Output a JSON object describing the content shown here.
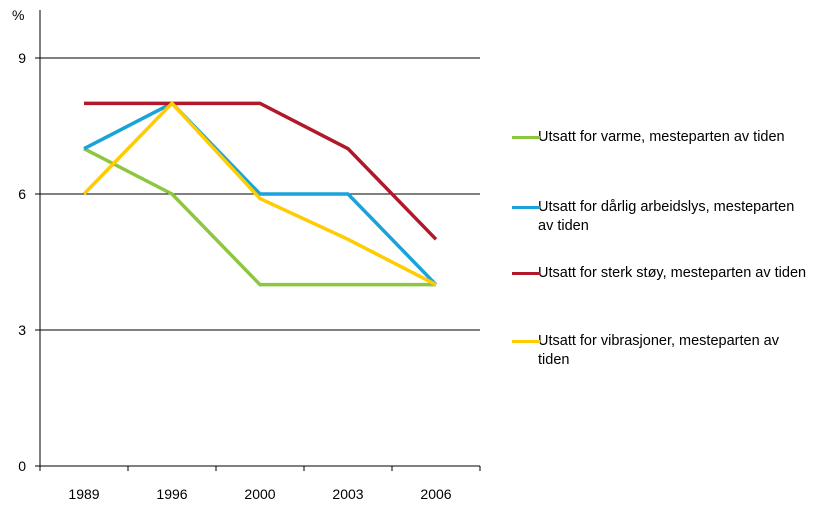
{
  "chart_data": {
    "type": "line",
    "ylabel": "%",
    "ylim": [
      0,
      9
    ],
    "yticks": [
      0,
      3,
      6,
      9
    ],
    "categories": [
      "1989",
      "1996",
      "2000",
      "2003",
      "2006"
    ],
    "grid": true,
    "legend_position": "right",
    "series": [
      {
        "name": "Utsatt for varme, mesteparten av tiden",
        "color": "#8dc63f",
        "values": [
          7,
          6,
          4,
          4,
          4
        ]
      },
      {
        "name": "Utsatt for dårlig arbeidslys, mesteparten av tiden",
        "color": "#1aa3d9",
        "values": [
          7,
          8,
          6,
          6,
          4
        ]
      },
      {
        "name": "Utsatt for sterk støy, mesteparten av tiden",
        "color": "#b2182b",
        "values": [
          8,
          8,
          8,
          7,
          5
        ]
      },
      {
        "name": "Utsatt for vibrasjoner, mesteparten av tiden",
        "color": "#ffcc00",
        "values": [
          6,
          8,
          5.9,
          5,
          4
        ]
      }
    ]
  }
}
